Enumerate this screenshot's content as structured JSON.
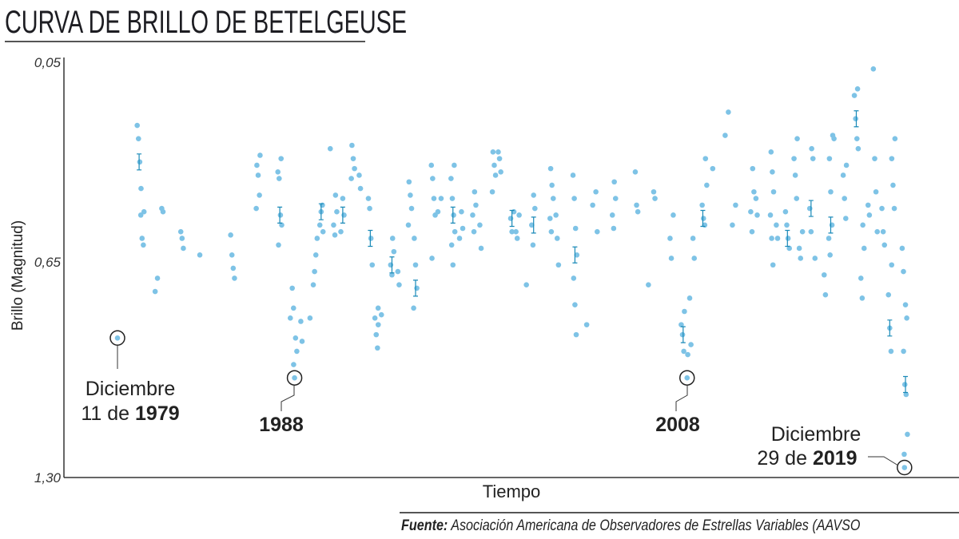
{
  "title": "CURVA DE BRILLO DE BETELGEUSE",
  "source_label": "Fuente:",
  "source_text": "Asociación Americana de Observadores de Estrellas Variables (AAVSO",
  "colors": {
    "points": "#7ec3e6",
    "error_bars": "#1a8ab8",
    "axis": "#333333"
  },
  "chart_data": {
    "type": "scatter",
    "title": "CURVA DE BRILLO DE BETELGEUSE",
    "xlabel": "Tiempo",
    "ylabel": "Brillo (Magnitud)",
    "y_inverted": true,
    "ylim": [
      0.05,
      1.3
    ],
    "y_ticks": [
      "0,05",
      "0,65",
      "1,30"
    ],
    "xlim": [
      1977.3,
      2022.7
    ],
    "grid": false,
    "groups": [
      {
        "x": 1981.05,
        "y": [
          0.24,
          0.28,
          0.35,
          0.43
        ]
      },
      {
        "x": 1981.2,
        "y": [
          0.5,
          0.51,
          0.58,
          0.6
        ]
      },
      {
        "x": 1981.8,
        "y": [
          0.74
        ]
      },
      {
        "x": 1981.95,
        "y": [
          0.7
        ]
      },
      {
        "x": 1982.2,
        "y": [
          0.49,
          0.5
        ]
      },
      {
        "x": 1983.2,
        "y": [
          0.56,
          0.58,
          0.61
        ]
      },
      {
        "x": 1984.2,
        "y": [
          0.63
        ]
      },
      {
        "x": 1985.8,
        "y": [
          0.57,
          0.63,
          0.67,
          0.7
        ]
      },
      {
        "x": 1987.1,
        "y": [
          0.33,
          0.36,
          0.39,
          0.45,
          0.49
        ]
      },
      {
        "x": 1988.2,
        "y": [
          0.34,
          0.38,
          0.4,
          0.51,
          0.54,
          0.6
        ]
      },
      {
        "x": 1988.8,
        "y": [
          0.73,
          0.79,
          0.82
        ]
      },
      {
        "x": 1989.0,
        "y": [
          0.88,
          0.92,
          0.96
        ]
      },
      {
        "x": 1989.3,
        "y": [
          0.83,
          0.89
        ]
      },
      {
        "x": 1989.8,
        "y": [
          0.82
        ]
      },
      {
        "x": 1990.0,
        "y": [
          0.72,
          0.68,
          0.63,
          0.58
        ]
      },
      {
        "x": 1990.3,
        "y": [
          0.56,
          0.54,
          0.5,
          0.48
        ]
      },
      {
        "x": 1990.7,
        "y": [
          0.31
        ]
      },
      {
        "x": 1991.0,
        "y": [
          0.45,
          0.5,
          0.54,
          0.57
        ]
      },
      {
        "x": 1991.4,
        "y": [
          0.46,
          0.51,
          0.56
        ]
      },
      {
        "x": 1991.9,
        "y": [
          0.3,
          0.34,
          0.37,
          0.4
        ]
      },
      {
        "x": 1992.3,
        "y": [
          0.39,
          0.43
        ]
      },
      {
        "x": 1992.8,
        "y": [
          0.46,
          0.49,
          0.58,
          0.66
        ]
      },
      {
        "x": 1993.1,
        "y": [
          0.79,
          0.82,
          0.87,
          0.91
        ]
      },
      {
        "x": 1993.3,
        "y": [
          0.81,
          0.84
        ]
      },
      {
        "x": 1993.9,
        "y": [
          0.58,
          0.62,
          0.66,
          0.69
        ]
      },
      {
        "x": 1994.2,
        "y": [
          0.68,
          0.72
        ]
      },
      {
        "x": 1994.8,
        "y": [
          0.41,
          0.45,
          0.49,
          0.54
        ]
      },
      {
        "x": 1995.1,
        "y": [
          0.58,
          0.66,
          0.73,
          0.79
        ]
      },
      {
        "x": 1996.0,
        "y": [
          0.36,
          0.4,
          0.46,
          0.51,
          0.64
        ]
      },
      {
        "x": 1996.3,
        "y": [
          0.46,
          0.5
        ]
      },
      {
        "x": 1997.0,
        "y": [
          0.36,
          0.4,
          0.46,
          0.51,
          0.56,
          0.6,
          0.66
        ]
      },
      {
        "x": 1997.4,
        "y": [
          0.5,
          0.55,
          0.58
        ]
      },
      {
        "x": 1998.1,
        "y": [
          0.44,
          0.48,
          0.51,
          0.56
        ]
      },
      {
        "x": 1998.4,
        "y": [
          0.54,
          0.61
        ]
      },
      {
        "x": 1999.1,
        "y": [
          0.32,
          0.36,
          0.39,
          0.44
        ]
      },
      {
        "x": 1999.4,
        "y": [
          0.32,
          0.34,
          0.38
        ]
      },
      {
        "x": 2000.0,
        "y": [
          0.5,
          0.52,
          0.56
        ]
      },
      {
        "x": 2000.3,
        "y": [
          0.51,
          0.56,
          0.58
        ]
      },
      {
        "x": 2000.7,
        "y": [
          0.72
        ]
      },
      {
        "x": 2001.1,
        "y": [
          0.45,
          0.49,
          0.54,
          0.6
        ]
      },
      {
        "x": 2002.0,
        "y": [
          0.37,
          0.42,
          0.46,
          0.52,
          0.56
        ]
      },
      {
        "x": 2002.3,
        "y": [
          0.51,
          0.58,
          0.66
        ]
      },
      {
        "x": 2003.2,
        "y": [
          0.39,
          0.46,
          0.55,
          0.63,
          0.7,
          0.78,
          0.87
        ]
      },
      {
        "x": 2003.7,
        "y": [
          0.84
        ]
      },
      {
        "x": 2004.2,
        "y": [
          0.44,
          0.48
        ]
      },
      {
        "x": 2004.3,
        "y": [
          0.56
        ]
      },
      {
        "x": 2005.2,
        "y": [
          0.41,
          0.46,
          0.51,
          0.55
        ]
      },
      {
        "x": 2006.3,
        "y": [
          0.38,
          0.48,
          0.5
        ]
      },
      {
        "x": 2007.0,
        "y": [
          0.72
        ]
      },
      {
        "x": 2007.3,
        "y": [
          0.44,
          0.46
        ]
      },
      {
        "x": 2008.1,
        "y": [
          0.51,
          0.58,
          0.64
        ]
      },
      {
        "x": 2008.7,
        "y": [
          0.8,
          0.84,
          0.87,
          0.92
        ]
      },
      {
        "x": 2009.0,
        "y": [
          0.76,
          0.9,
          0.93
        ]
      },
      {
        "x": 2009.2,
        "y": [
          0.58,
          0.64
        ]
      },
      {
        "x": 2009.7,
        "y": [
          0.48,
          0.52,
          0.54
        ]
      },
      {
        "x": 2009.9,
        "y": [
          0.34,
          0.42
        ]
      },
      {
        "x": 2010.3,
        "y": [
          0.37
        ]
      },
      {
        "x": 2010.9,
        "y": [
          0.2,
          0.27
        ]
      },
      {
        "x": 2011.3,
        "y": [
          0.48,
          0.54
        ]
      },
      {
        "x": 2012.2,
        "y": [
          0.37,
          0.44,
          0.5,
          0.56
        ]
      },
      {
        "x": 2012.4,
        "y": [
          0.46,
          0.51
        ]
      },
      {
        "x": 2013.2,
        "y": [
          0.32,
          0.38,
          0.44,
          0.51,
          0.58,
          0.66
        ]
      },
      {
        "x": 2013.5,
        "y": [
          0.54,
          0.58
        ]
      },
      {
        "x": 2014.0,
        "y": [
          0.5,
          0.54,
          0.58,
          0.61
        ]
      },
      {
        "x": 2014.4,
        "y": [
          0.28,
          0.34,
          0.39,
          0.46
        ]
      },
      {
        "x": 2014.7,
        "y": [
          0.56,
          0.61,
          0.64
        ]
      },
      {
        "x": 2015.2,
        "y": [
          0.31,
          0.34,
          0.49,
          0.56
        ]
      },
      {
        "x": 2015.4,
        "y": [
          0.64
        ]
      },
      {
        "x": 2015.9,
        "y": [
          0.69,
          0.75
        ]
      },
      {
        "x": 2016.2,
        "y": [
          0.34,
          0.44,
          0.54,
          0.58,
          0.63
        ]
      },
      {
        "x": 2016.4,
        "y": [
          0.27,
          0.28
        ]
      },
      {
        "x": 2016.9,
        "y": [
          0.36,
          0.39,
          0.46,
          0.52
        ]
      },
      {
        "x": 2017.5,
        "y": [
          0.13,
          0.15,
          0.22,
          0.28,
          0.31
        ]
      },
      {
        "x": 2017.8,
        "y": [
          0.54,
          0.61,
          0.7,
          0.76
        ]
      },
      {
        "x": 2018.1,
        "y": [
          0.48,
          0.51
        ]
      },
      {
        "x": 2018.4,
        "y": [
          0.07
        ]
      },
      {
        "x": 2018.5,
        "y": [
          0.34,
          0.44,
          0.56
        ]
      },
      {
        "x": 2018.9,
        "y": [
          0.49,
          0.56,
          0.6
        ]
      },
      {
        "x": 2019.2,
        "y": [
          0.66,
          0.75,
          0.85,
          0.92
        ]
      },
      {
        "x": 2019.4,
        "y": [
          0.28,
          0.34,
          0.42,
          0.49
        ]
      },
      {
        "x": 2019.8,
        "y": [
          0.61,
          0.68
        ]
      },
      {
        "x": 2020.0,
        "y": [
          0.78,
          0.82,
          0.92,
          1.02,
          1.05,
          1.17,
          1.23
        ]
      }
    ],
    "highlights": [
      {
        "x": 1979.95,
        "y": 0.88,
        "label_line1": "Diciembre",
        "label_line2_prefix": "11 de ",
        "label_year": "1979"
      },
      {
        "x": 1988.95,
        "y": 1.0,
        "label_year": "1988"
      },
      {
        "x": 2008.9,
        "y": 1.0,
        "label_year": "2008"
      },
      {
        "x": 2019.95,
        "y": 1.27,
        "label_line1": "Diciembre",
        "label_line2_prefix": "29 de ",
        "label_year": "2019"
      }
    ]
  }
}
